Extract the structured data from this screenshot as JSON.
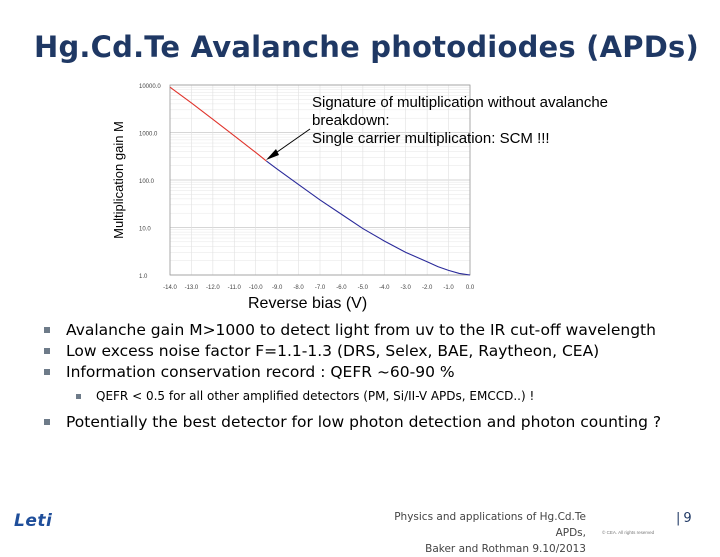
{
  "slide": {
    "title": "Hg.Cd.Te Avalanche photodiodes (APDs)",
    "callout": [
      "Signature of multiplication without avalanche",
      "breakdown:",
      "Single carrier multiplication: SCM !!!"
    ],
    "xlabel": "Reverse bias (V)",
    "bullets": [
      "Avalanche gain M>1000 to detect light from uv to the IR cut-off wavelength",
      "Low excess noise factor  F=1.1-1.3 (DRS, Selex, BAE, Raytheon, CEA)",
      "Information conservation record : QEFR ~60-90 %"
    ],
    "sub_bullet": "QEFR < 0.5 for all other amplified detectors (PM, Si/II-V APDs, EMCCD..) !",
    "last_bullet": "Potentially the best detector for low photon detection and photon counting  ?",
    "logo": "Leti",
    "footer_line1": "Physics and applications of Hg.Cd.Te APDs,",
    "footer_line2": "Baker and Rothman  9.10/2013",
    "copyright": "© CEA. All rights reserved",
    "page_number": "9",
    "colors": {
      "title": "#1f3864",
      "bullet_square": "#6e7b89",
      "curve_blue": "#2a2a9a",
      "curve_red": "#e0342c",
      "grid": "#c8c8c8"
    }
  },
  "chart_data": {
    "type": "line",
    "ylabel": "Multiplication gain M",
    "xlabel": "Reverse bias (V)",
    "yscale": "log",
    "ylim": [
      1,
      10000
    ],
    "xlim": [
      -14,
      0
    ],
    "ytick_labels": [
      "10000.0",
      "1000.0",
      "100.0",
      "10.0",
      "1.0"
    ],
    "yticks": [
      10000,
      1000,
      100,
      10,
      1
    ],
    "xtick_labels": [
      "-14.0",
      "-13.0",
      "-12.0",
      "-11.0",
      "-10.0",
      "-9.0",
      "-8.0",
      "-7.0",
      "-6.0",
      "-5.0",
      "-4.0",
      "-3.0",
      "-2.0",
      "-1.0",
      "0.0"
    ],
    "xticks": [
      -14,
      -13,
      -12,
      -11,
      -10,
      -9,
      -8,
      -7,
      -6,
      -5,
      -4,
      -3,
      -2,
      -1,
      0
    ],
    "grid": true,
    "series": [
      {
        "x": [
          -14.0,
          -13.0,
          -12.0,
          -11.0,
          -10.0,
          -9.5
        ],
        "y": [
          9000,
          4200,
          1900,
          850,
          380,
          250
        ]
      },
      {
        "x": [
          -9.5,
          -9.0,
          -8.0,
          -7.0,
          -6.0,
          -5.0,
          -4.0,
          -3.0,
          -2.0,
          -1.5,
          -1.0,
          -0.5,
          0.0
        ],
        "y": [
          250,
          170,
          80,
          38,
          19,
          9.5,
          5.2,
          3.0,
          1.9,
          1.5,
          1.25,
          1.08,
          1.0
        ]
      }
    ]
  }
}
